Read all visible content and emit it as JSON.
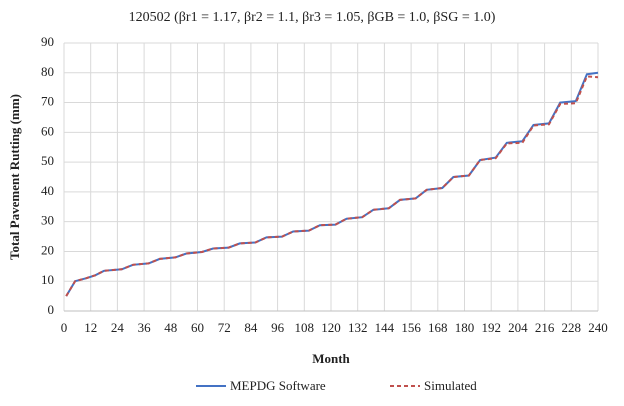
{
  "chart_data": {
    "type": "line",
    "title": "120502 (βr1 = 1.17, βr2 = 1.1, βr3 = 1.05, βGB = 1.0, βSG = 1.0)",
    "x_label": "Month",
    "y_label": "Total Pavement Rutting (mm)",
    "x": [
      1,
      5,
      10,
      14,
      18,
      26,
      31,
      38,
      43,
      50,
      55,
      62,
      67,
      74,
      79,
      86,
      91,
      98,
      103,
      110,
      115,
      122,
      127,
      134,
      139,
      146,
      151,
      158,
      163,
      170,
      175,
      182,
      187,
      194,
      199,
      206,
      211,
      218,
      223,
      230,
      235,
      240
    ],
    "series": [
      {
        "name": "MEPDG Software",
        "color": "#4472c4",
        "dashed": false,
        "values": [
          5,
          10,
          11,
          12,
          13.5,
          14,
          15.5,
          16,
          17.5,
          18,
          19.3,
          19.8,
          21,
          21.3,
          22.7,
          23,
          24.7,
          25,
          26.7,
          27,
          28.8,
          29,
          31,
          31.5,
          34,
          34.5,
          37.3,
          37.8,
          40.7,
          41.3,
          45,
          45.5,
          50.7,
          51.5,
          56.5,
          57,
          62.5,
          63,
          70,
          70.5,
          79.5,
          80
        ]
      },
      {
        "name": "Simulated",
        "color": "#c0504d",
        "dashed": true,
        "values": [
          5,
          10,
          11,
          12,
          13.5,
          14,
          15.5,
          16,
          17.5,
          18,
          19.3,
          19.8,
          21,
          21.3,
          22.7,
          23,
          24.7,
          25,
          26.7,
          27,
          28.8,
          29,
          31,
          31.5,
          34,
          34.5,
          37.3,
          37.8,
          40.7,
          41.3,
          45,
          45.5,
          50.7,
          51.3,
          56.3,
          56.5,
          62.3,
          62.7,
          69.5,
          69.8,
          78.8,
          78.5
        ]
      }
    ],
    "xlim": [
      0,
      240
    ],
    "xticks": [
      0,
      12,
      24,
      36,
      48,
      60,
      72,
      84,
      96,
      108,
      120,
      132,
      144,
      156,
      168,
      180,
      192,
      204,
      216,
      228,
      240
    ],
    "ylim": [
      0,
      90
    ],
    "yticks": [
      0,
      10,
      20,
      30,
      40,
      50,
      60,
      70,
      80,
      90
    ],
    "grid": true,
    "legend": "bottom"
  }
}
